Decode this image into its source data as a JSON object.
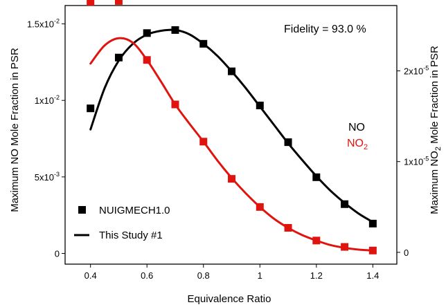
{
  "chart_data": {
    "type": "scatter",
    "xlabel": "Equivalence Ratio",
    "ylabel_left": {
      "main": "Maximum NO Mole Fraction in PSR"
    },
    "ylabel_right": {
      "pre": "Maximum NO",
      "sub": "2",
      "post": " Mole Fraction in PSR"
    },
    "xlim": [
      0.31,
      1.485
    ],
    "ylim_left": [
      -0.0007,
      0.0162
    ],
    "ylim_right": [
      -1.3e-06,
      2.72e-05
    ],
    "xticks": [
      {
        "value": 0.4,
        "label": "0.4"
      },
      {
        "value": 0.6,
        "label": "0.6"
      },
      {
        "value": 0.8,
        "label": "0.8"
      },
      {
        "value": 1.0,
        "label": "1"
      },
      {
        "value": 1.2,
        "label": "1.2"
      },
      {
        "value": 1.4,
        "label": "1.4"
      }
    ],
    "yticks_left": [
      {
        "value": 0,
        "label": "0"
      },
      {
        "value": 0.005,
        "mant": "5x10",
        "exp": "-3"
      },
      {
        "value": 0.01,
        "mant": "1x10",
        "exp": "-2"
      },
      {
        "value": 0.015,
        "mant": "1.5x10",
        "exp": "-2"
      }
    ],
    "yticks_right": [
      {
        "value": 0,
        "label": "0"
      },
      {
        "value": 1e-05,
        "mant": "1x10",
        "exp": "-5"
      },
      {
        "value": 2e-05,
        "mant": "2x10",
        "exp": "-5"
      }
    ],
    "series": [
      {
        "name": "NO",
        "axis": "left",
        "color": "#000000",
        "points": [
          {
            "x": 0.4,
            "y": 0.00948
          },
          {
            "x": 0.5,
            "y": 0.0128
          },
          {
            "x": 0.6,
            "y": 0.0144
          },
          {
            "x": 0.7,
            "y": 0.0146
          },
          {
            "x": 0.8,
            "y": 0.0137
          },
          {
            "x": 0.9,
            "y": 0.0119
          },
          {
            "x": 1.0,
            "y": 0.00967
          },
          {
            "x": 1.1,
            "y": 0.00727
          },
          {
            "x": 1.2,
            "y": 0.00498
          },
          {
            "x": 1.3,
            "y": 0.00322
          },
          {
            "x": 1.4,
            "y": 0.00195
          }
        ],
        "curve": [
          {
            "x": 0.4,
            "y": 0.0081
          },
          {
            "x": 0.45,
            "y": 0.0108
          },
          {
            "x": 0.5,
            "y": 0.0126
          },
          {
            "x": 0.55,
            "y": 0.0137
          },
          {
            "x": 0.6,
            "y": 0.0143
          },
          {
            "x": 0.65,
            "y": 0.01455
          },
          {
            "x": 0.7,
            "y": 0.0146
          },
          {
            "x": 0.75,
            "y": 0.01432
          },
          {
            "x": 0.8,
            "y": 0.0137
          },
          {
            "x": 0.85,
            "y": 0.0129
          },
          {
            "x": 0.9,
            "y": 0.0119
          },
          {
            "x": 0.95,
            "y": 0.0108
          },
          {
            "x": 1.0,
            "y": 0.0096
          },
          {
            "x": 1.05,
            "y": 0.0084
          },
          {
            "x": 1.1,
            "y": 0.0072
          },
          {
            "x": 1.15,
            "y": 0.0061
          },
          {
            "x": 1.2,
            "y": 0.00505
          },
          {
            "x": 1.25,
            "y": 0.0041
          },
          {
            "x": 1.3,
            "y": 0.0033
          },
          {
            "x": 1.35,
            "y": 0.0026
          },
          {
            "x": 1.4,
            "y": 0.00205
          }
        ]
      },
      {
        "name": "NO2",
        "axis": "right",
        "color": "#e0140f",
        "points": [
          {
            "x": 0.4,
            "y": 2.76e-05
          },
          {
            "x": 0.5,
            "y": 2.77e-05
          },
          {
            "x": 0.6,
            "y": 2.12e-05
          },
          {
            "x": 0.7,
            "y": 1.63e-05
          },
          {
            "x": 0.8,
            "y": 1.22e-05
          },
          {
            "x": 0.9,
            "y": 8.1e-06
          },
          {
            "x": 1.0,
            "y": 5e-06
          },
          {
            "x": 1.1,
            "y": 2.7e-06
          },
          {
            "x": 1.2,
            "y": 1.3e-06
          },
          {
            "x": 1.3,
            "y": 6e-07
          },
          {
            "x": 1.4,
            "y": 2e-07
          }
        ],
        "curve": [
          {
            "x": 0.4,
            "y": 2.08e-05
          },
          {
            "x": 0.45,
            "y": 2.28e-05
          },
          {
            "x": 0.5,
            "y": 2.36e-05
          },
          {
            "x": 0.55,
            "y": 2.31e-05
          },
          {
            "x": 0.6,
            "y": 2.12e-05
          },
          {
            "x": 0.65,
            "y": 1.88e-05
          },
          {
            "x": 0.7,
            "y": 1.63e-05
          },
          {
            "x": 0.75,
            "y": 1.42e-05
          },
          {
            "x": 0.8,
            "y": 1.22e-05
          },
          {
            "x": 0.85,
            "y": 1.01e-05
          },
          {
            "x": 0.9,
            "y": 8.2e-06
          },
          {
            "x": 0.95,
            "y": 6.5e-06
          },
          {
            "x": 1.0,
            "y": 5e-06
          },
          {
            "x": 1.05,
            "y": 3.7e-06
          },
          {
            "x": 1.1,
            "y": 2.7e-06
          },
          {
            "x": 1.15,
            "y": 1.9e-06
          },
          {
            "x": 1.2,
            "y": 1.3e-06
          },
          {
            "x": 1.25,
            "y": 8e-07
          },
          {
            "x": 1.3,
            "y": 5e-07
          },
          {
            "x": 1.35,
            "y": 3e-07
          },
          {
            "x": 1.4,
            "y": 2e-07
          }
        ]
      }
    ],
    "annotations": {
      "fidelity": "Fidelity = 93.0 %",
      "no_label": "NO",
      "no2_label": {
        "pre": "NO",
        "sub": "2"
      }
    },
    "legend": {
      "placement": "bottom-left",
      "entries": [
        {
          "label": "NUIGMECH1.0",
          "marker": "square"
        },
        {
          "label": "This Study #1",
          "marker": "line"
        }
      ]
    },
    "colors": {
      "no": "#000000",
      "no2": "#e0140f"
    }
  }
}
